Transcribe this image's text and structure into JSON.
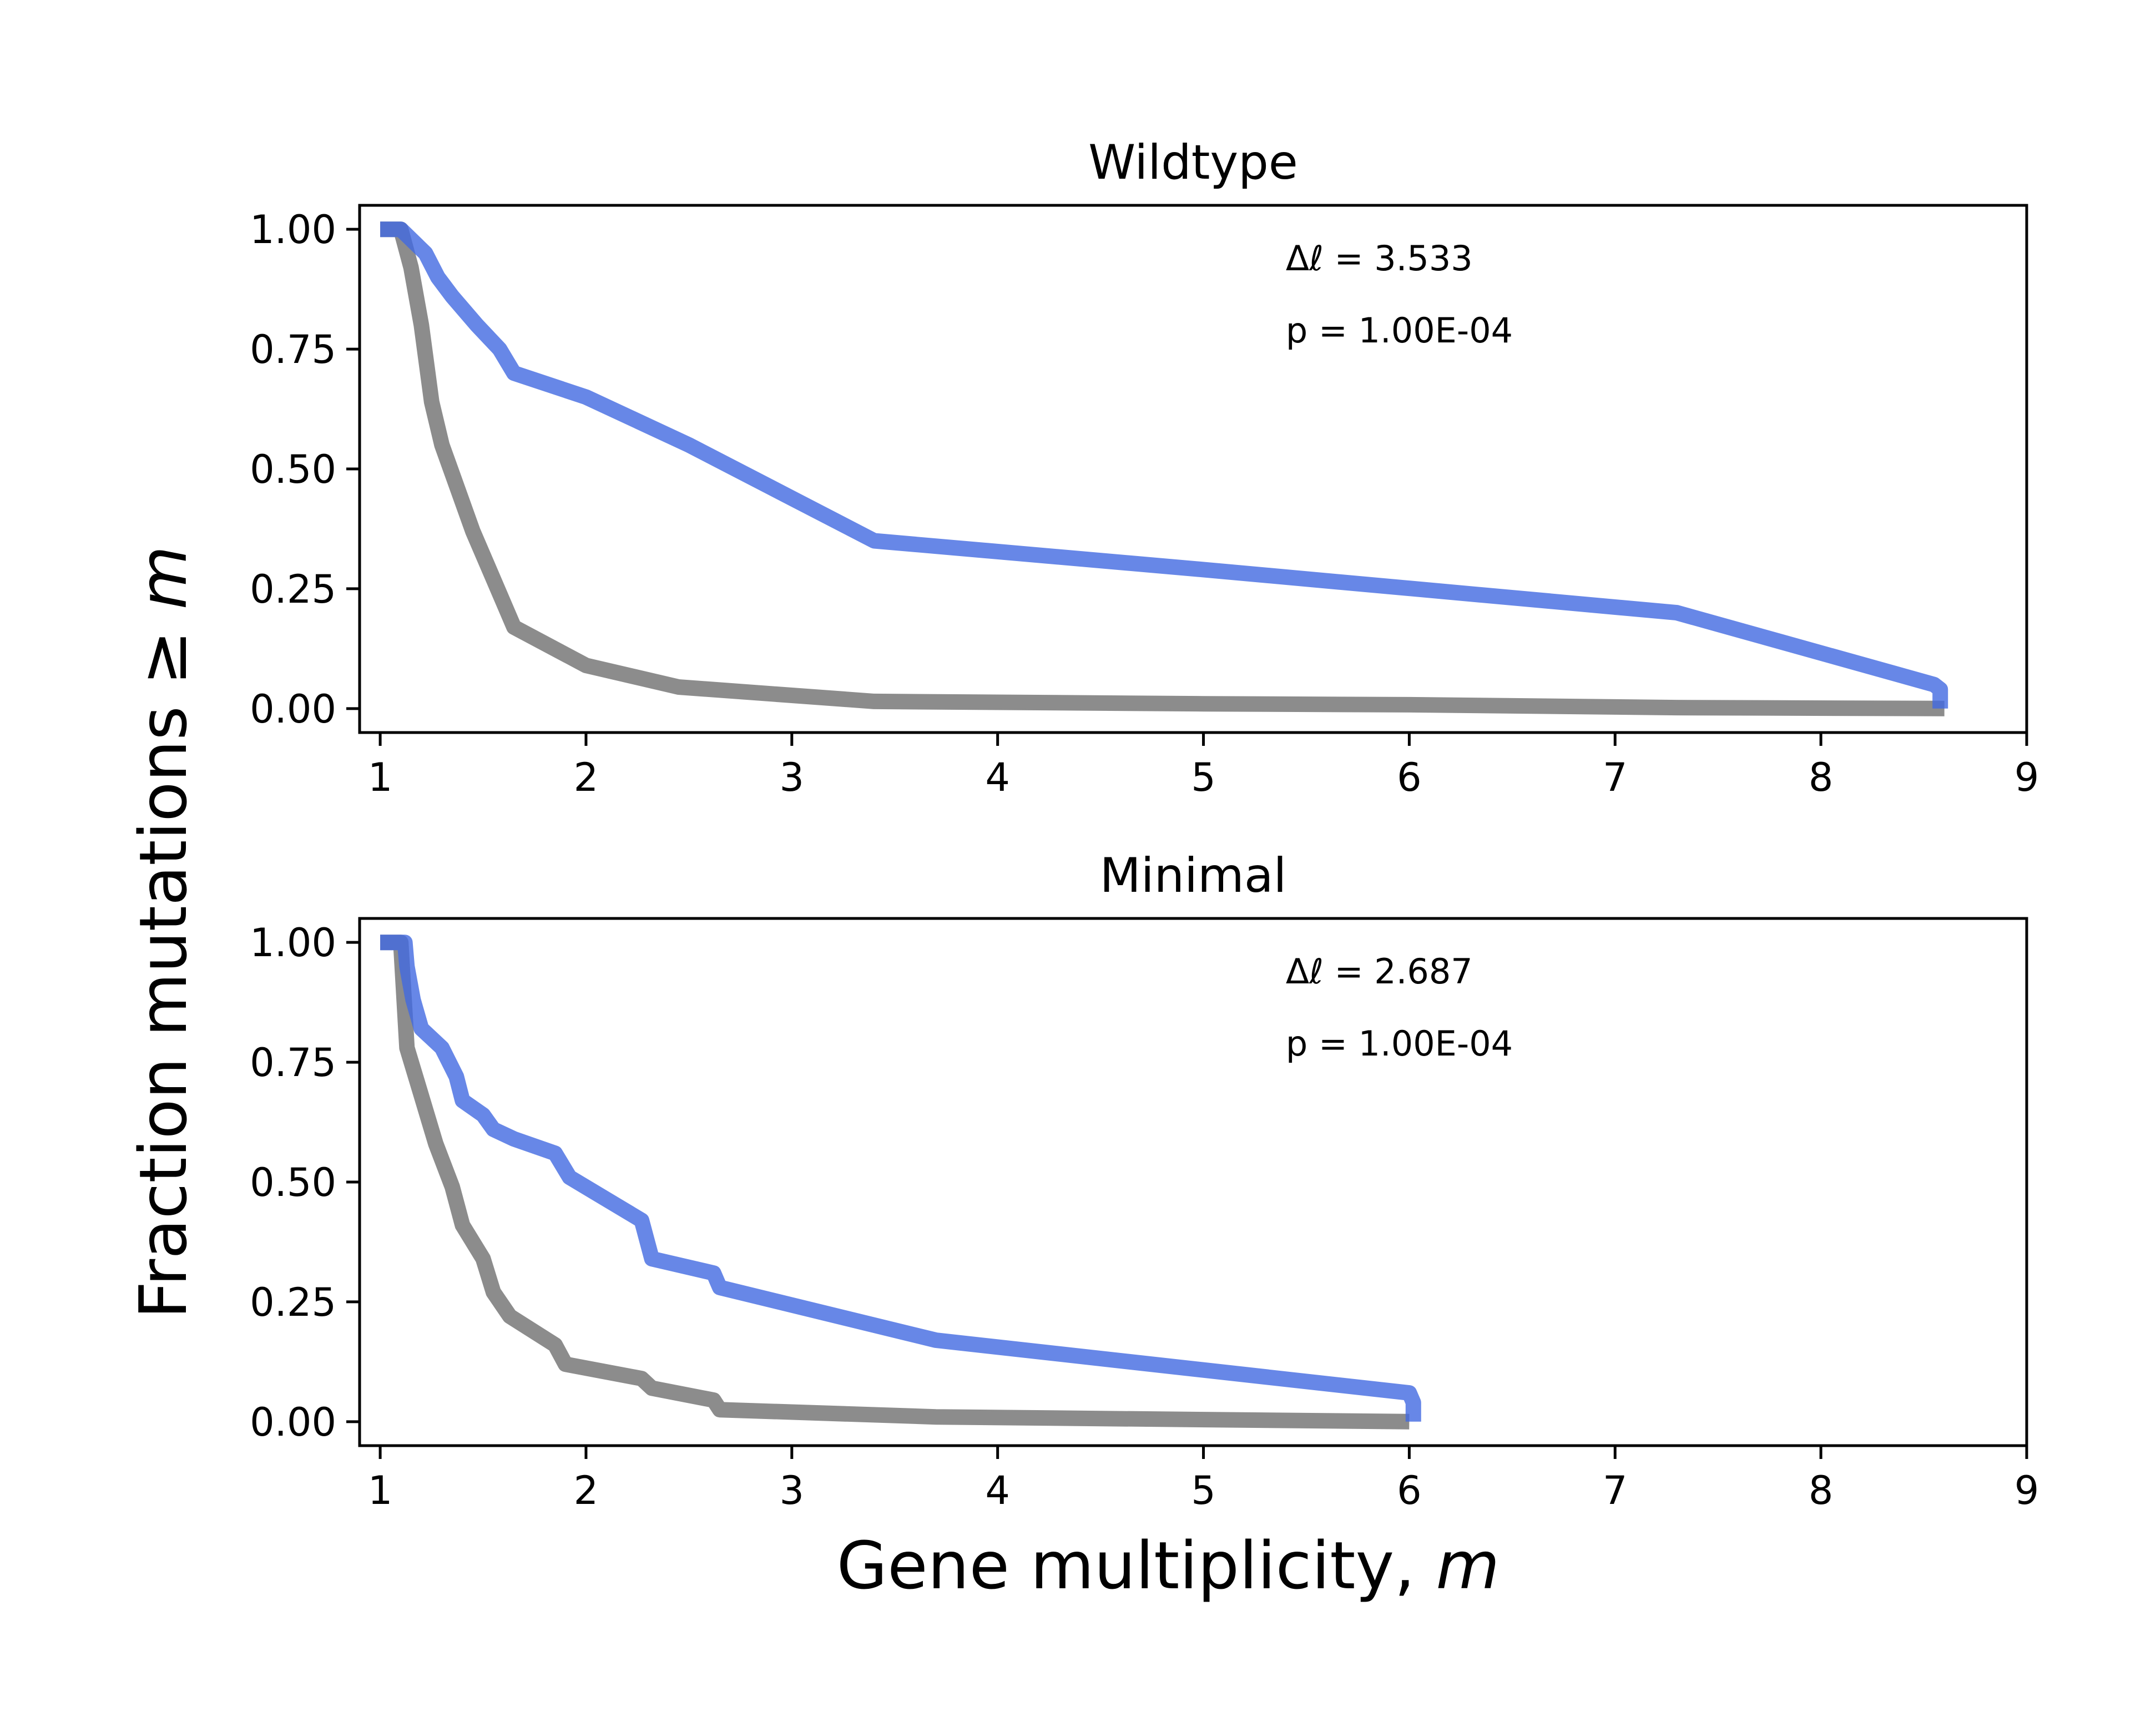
{
  "figure": {
    "ylabel_prefix": "Fraction mutations  ≥ ",
    "ylabel_var": "m",
    "xlabel_prefix": "Gene multiplicity, ",
    "xlabel_var": "m"
  },
  "colors": {
    "observed": "#4169e1",
    "null": "#808080",
    "axes": "#000000"
  },
  "chart_data": [
    {
      "type": "line",
      "title": "Wildtype",
      "xlabel": "",
      "ylabel": "",
      "xlim": [
        0.9,
        9
      ],
      "ylim": [
        -0.05,
        1.05
      ],
      "xticks": [
        "1",
        "2",
        "3",
        "4",
        "5",
        "6",
        "7",
        "8",
        "9"
      ],
      "yticks": [
        "0.00",
        "0.25",
        "0.50",
        "0.75",
        "1.00"
      ],
      "annotations": [
        "Δℓ = 3.533",
        "p = 1.00E-04"
      ],
      "series": [
        {
          "role": "null",
          "x": [
            1,
            1.1,
            1.15,
            1.2,
            1.25,
            1.3,
            1.35,
            1.45,
            1.55,
            1.65,
            2,
            2.45,
            3.4,
            5,
            6,
            7.3,
            8.6
          ],
          "y": [
            1,
            1,
            0.92,
            0.8,
            0.64,
            0.55,
            0.49,
            0.37,
            0.27,
            0.17,
            0.09,
            0.045,
            0.015,
            0.01,
            0.008,
            0.002,
            0
          ]
        },
        {
          "role": "observed",
          "x": [
            1,
            1.1,
            1.22,
            1.28,
            1.35,
            1.47,
            1.58,
            1.65,
            2,
            2.5,
            3.4,
            5,
            7.3,
            8.55,
            8.58,
            8.58
          ],
          "y": [
            1,
            1,
            0.95,
            0.9,
            0.86,
            0.8,
            0.75,
            0.7,
            0.65,
            0.55,
            0.35,
            0.29,
            0.2,
            0.05,
            0.04,
            0
          ]
        }
      ]
    },
    {
      "type": "line",
      "title": "Minimal",
      "xlabel": "",
      "ylabel": "",
      "xlim": [
        0.9,
        9
      ],
      "ylim": [
        -0.05,
        1.05
      ],
      "xticks": [
        "1",
        "2",
        "3",
        "4",
        "5",
        "6",
        "7",
        "8",
        "9"
      ],
      "yticks": [
        "0.00",
        "0.25",
        "0.50",
        "0.75",
        "1.00"
      ],
      "annotations": [
        "Δℓ = 2.687",
        "p = 1.00E-04"
      ],
      "series": [
        {
          "role": "null",
          "x": [
            1,
            1.1,
            1.13,
            1.2,
            1.27,
            1.35,
            1.4,
            1.5,
            1.55,
            1.63,
            1.85,
            1.9,
            2.27,
            2.32,
            2.62,
            2.65,
            3.7,
            6.0
          ],
          "y": [
            1,
            1,
            0.78,
            0.68,
            0.58,
            0.49,
            0.41,
            0.34,
            0.27,
            0.22,
            0.16,
            0.12,
            0.09,
            0.07,
            0.045,
            0.025,
            0.01,
            0
          ]
        },
        {
          "role": "observed",
          "x": [
            1,
            1.12,
            1.13,
            1.16,
            1.2,
            1.3,
            1.37,
            1.4,
            1.5,
            1.55,
            1.65,
            1.85,
            1.92,
            2.27,
            2.32,
            2.62,
            2.65,
            3.7,
            6.0,
            6.02,
            6.02
          ],
          "y": [
            1,
            1,
            0.95,
            0.88,
            0.82,
            0.78,
            0.72,
            0.67,
            0.64,
            0.61,
            0.59,
            0.56,
            0.51,
            0.42,
            0.34,
            0.31,
            0.28,
            0.17,
            0.06,
            0.04,
            0
          ]
        }
      ]
    }
  ]
}
